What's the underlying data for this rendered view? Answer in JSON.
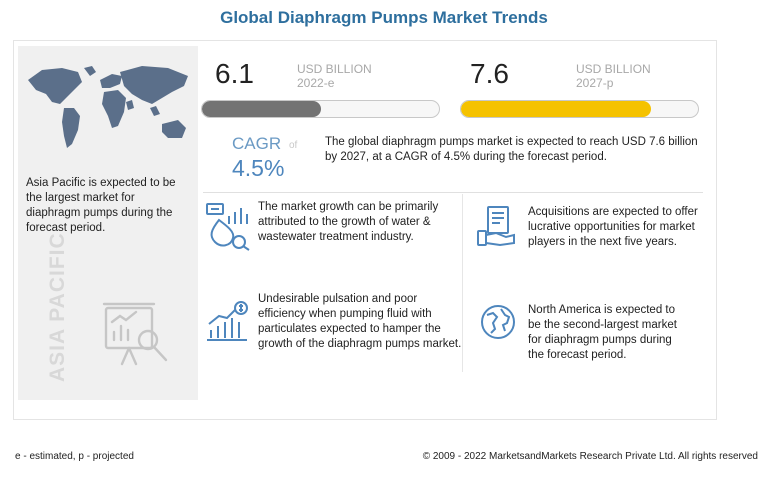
{
  "title": "Global Diaphragm Pumps Market Trends",
  "left_panel": {
    "text": "Asia Pacific is expected to be the largest market for diaphragm pumps during the forecast period.",
    "region_label": "ASIA PACIFIC",
    "map_icon": "world-map-icon",
    "analysis_icon": "presentation-analysis-icon"
  },
  "stats": {
    "start": {
      "value": "6.1",
      "unit": "USD BILLION",
      "year": "2022-e",
      "fill_fraction": 0.5,
      "color": "#737373"
    },
    "end": {
      "value": "7.6",
      "unit": "USD BILLION",
      "year": "2027-p",
      "fill_fraction": 0.8,
      "color": "#f5c200"
    }
  },
  "cagr": {
    "label": "CAGR",
    "of": "of",
    "value": "4.5%"
  },
  "summary": "The global diaphragm pumps market is expected to reach USD 7.6 billion by 2027, at a CAGR of 4.5% during the forecast period.",
  "insights": [
    {
      "icon": "water-analytics-icon",
      "text": "The market growth can be primarily attributed to the growth of water & wastewater treatment industry."
    },
    {
      "icon": "acquisition-handshake-icon",
      "text": "Acquisitions are expected to offer lucrative opportunities for market players in the next five years."
    },
    {
      "icon": "growth-chart-icon",
      "text": "Undesirable pulsation and poor efficiency when pumping fluid with particulates expected to hamper the growth of the diaphragm pumps market."
    },
    {
      "icon": "globe-icon",
      "text": "North America is expected to be the second-largest market for diaphragm pumps during the forecast period."
    }
  ],
  "footer": {
    "note": "e - estimated, p - projected",
    "copyright": "© 2009 - 2022 MarketsandMarkets Research Private Ltd. All rights reserved"
  },
  "colors": {
    "title": "#2e6f9e",
    "icon_blue": "#4e86bd",
    "accent_yellow": "#f5c200",
    "bar_gray": "#737373"
  }
}
